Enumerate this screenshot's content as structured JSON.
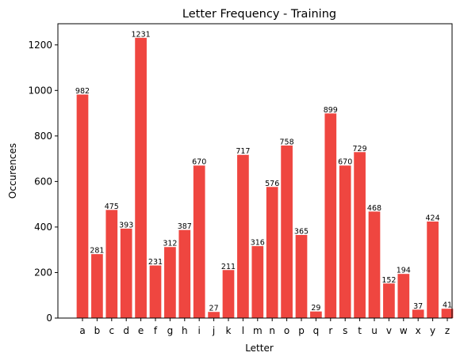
{
  "chart_data": {
    "type": "bar",
    "title": "Letter Frequency - Training",
    "xlabel": "Letter",
    "ylabel": "Occurences",
    "categories": [
      "a",
      "b",
      "c",
      "d",
      "e",
      "f",
      "g",
      "h",
      "i",
      "j",
      "k",
      "l",
      "m",
      "n",
      "o",
      "p",
      "q",
      "r",
      "s",
      "t",
      "u",
      "v",
      "w",
      "x",
      "y",
      "z"
    ],
    "values": [
      982,
      281,
      475,
      393,
      1231,
      231,
      312,
      387,
      670,
      27,
      211,
      717,
      316,
      576,
      758,
      365,
      29,
      899,
      670,
      729,
      468,
      152,
      194,
      37,
      424,
      41
    ],
    "ylim": [
      0,
      1293
    ],
    "yticks": [
      0,
      200,
      400,
      600,
      800,
      1000,
      1200
    ],
    "bar_color": "#ef4640",
    "grid": false,
    "data_labels": true
  }
}
